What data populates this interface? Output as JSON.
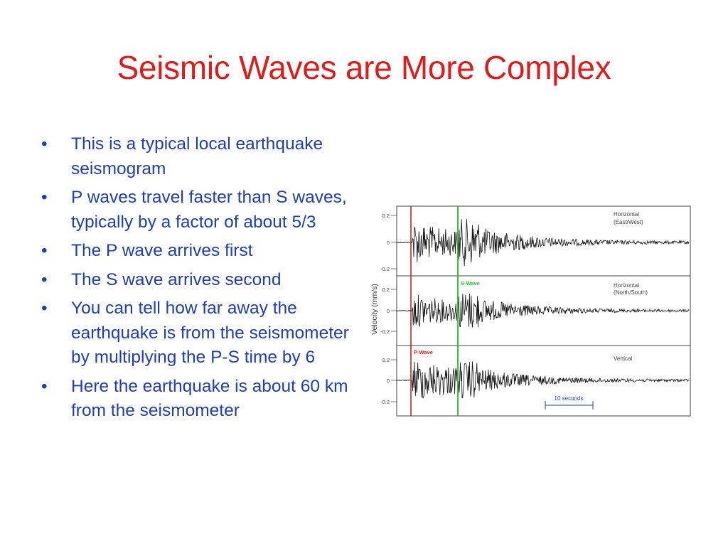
{
  "slide": {
    "title": "Seismic Waves are More Complex",
    "bullets": [
      "This is a typical local earthquake seismogram",
      "P waves travel faster than S waves, typically by a factor of about 5/3",
      "The P wave arrives first",
      "The S wave arrives second",
      "You can tell how far away the earthquake is from the seismometer by multiplying the P-S time by 6",
      "Here the earthquake is about 60 km from the seismometer"
    ]
  },
  "seismogram": {
    "ylabel": "Velocity (mm/s)",
    "panels": [
      {
        "label_line1": "Horizontal",
        "label_line2": "(East/West)",
        "ticks": [
          "0.2",
          "0",
          "-0.2"
        ]
      },
      {
        "label_line1": "Horizontal",
        "label_line2": "(North/South)",
        "ticks": [
          "0.2",
          "0",
          "-0.2"
        ]
      },
      {
        "label_line1": "Vertical",
        "label_line2": "",
        "ticks": [
          "0.2",
          "0",
          "-0.2"
        ]
      }
    ],
    "p_wave_label": "P-Wave",
    "s_wave_label": "S-Wave",
    "scale_label": "10 seconds",
    "colors": {
      "p_wave": "#e01b1b",
      "s_wave": "#22c02a",
      "scale": "#1f3fae",
      "trace": "#111111"
    }
  }
}
